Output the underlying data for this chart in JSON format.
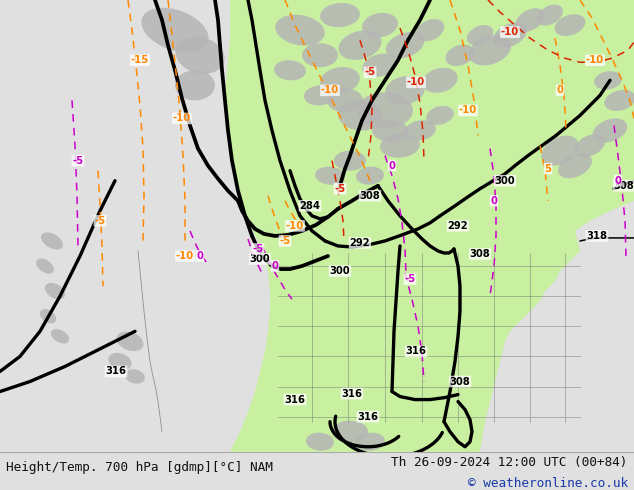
{
  "title_left": "Height/Temp. 700 hPa [gdmp][°C] NAM",
  "title_right": "Th 26-09-2024 12:00 UTC (00+84)",
  "copyright": "© weatheronline.co.uk",
  "bg_color": "#e0e0e0",
  "map_bg": "#e0e0e0",
  "green_fill": "#c8f0a0",
  "fig_width": 6.34,
  "fig_height": 4.9,
  "dpi": 100,
  "bottom_bar_color": "#ffffff",
  "title_fontsize": 9.2,
  "copyright_color": "#1a3aaa",
  "text_color": "#111111",
  "contour_black": "#000000",
  "contour_orange": "#ff8800",
  "contour_magenta": "#cc00cc",
  "contour_red": "#dd2200",
  "contour_linewidth_thick": 2.4,
  "contour_linewidth_thin": 1.1
}
